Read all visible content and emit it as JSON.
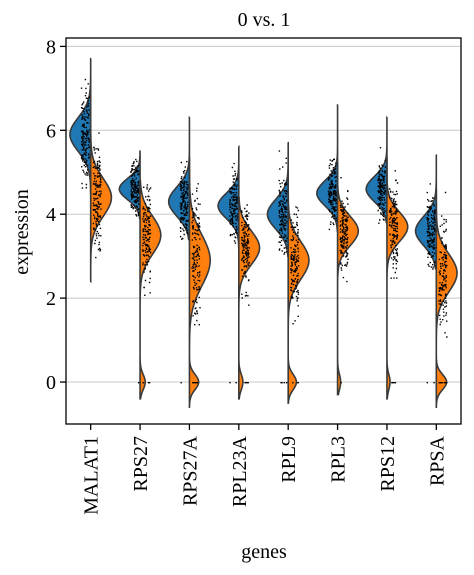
{
  "chart_data": {
    "type": "split-violin",
    "title": "0 vs. 1",
    "xlabel": "genes",
    "ylabel": "expression",
    "ylim": [
      -1,
      8.2
    ],
    "yticks": [
      0,
      2,
      4,
      6,
      8
    ],
    "grid": "horizontal",
    "categories": [
      "MALAT1",
      "RPS27",
      "RPS27A",
      "RPL23A",
      "RPL9",
      "RPL3",
      "RPS12",
      "RPSA"
    ],
    "series": [
      {
        "colors": "#1f77b4",
        "side": "left"
      },
      {
        "colors": "#ff7f0e",
        "side": "right"
      }
    ],
    "violins": [
      {
        "gene": "MALAT1",
        "left": {
          "min": 4.5,
          "max": 7.7,
          "peak": 5.9,
          "sd": 0.4,
          "zero": 0.0
        },
        "right": {
          "min": 2.4,
          "max": 6.6,
          "peak": 4.4,
          "sd": 0.45,
          "zero": 0.0
        }
      },
      {
        "gene": "RPS27",
        "left": {
          "min": 3.9,
          "max": 5.5,
          "peak": 4.6,
          "sd": 0.25,
          "zero": 0.08
        },
        "right": {
          "min": -0.4,
          "max": 4.8,
          "peak": 3.5,
          "sd": 0.45,
          "zero": 0.25
        }
      },
      {
        "gene": "RPS27A",
        "left": {
          "min": 3.4,
          "max": 6.3,
          "peak": 4.3,
          "sd": 0.35,
          "zero": 0.05
        },
        "right": {
          "min": -0.6,
          "max": 5.3,
          "peak": 2.9,
          "sd": 0.6,
          "zero": 0.45
        }
      },
      {
        "gene": "RPL23A",
        "left": {
          "min": 3.2,
          "max": 5.6,
          "peak": 4.2,
          "sd": 0.3,
          "zero": 0.05
        },
        "right": {
          "min": -0.4,
          "max": 4.4,
          "peak": 3.2,
          "sd": 0.4,
          "zero": 0.2
        }
      },
      {
        "gene": "RPL9",
        "left": {
          "min": 3.0,
          "max": 5.7,
          "peak": 4.0,
          "sd": 0.35,
          "zero": 0.2
        },
        "right": {
          "min": -0.5,
          "max": 4.6,
          "peak": 2.9,
          "sd": 0.45,
          "zero": 0.4
        }
      },
      {
        "gene": "RPL3",
        "left": {
          "min": 3.6,
          "max": 6.6,
          "peak": 4.5,
          "sd": 0.3,
          "zero": 0.05
        },
        "right": {
          "min": -0.3,
          "max": 5.2,
          "peak": 3.6,
          "sd": 0.35,
          "zero": 0.15
        }
      },
      {
        "gene": "RPS12",
        "left": {
          "min": 3.8,
          "max": 6.3,
          "peak": 4.6,
          "sd": 0.3,
          "zero": 0.05
        },
        "right": {
          "min": -0.4,
          "max": 5.3,
          "peak": 3.7,
          "sd": 0.35,
          "zero": 0.15
        }
      },
      {
        "gene": "RPSA",
        "left": {
          "min": 2.7,
          "max": 5.4,
          "peak": 3.6,
          "sd": 0.35,
          "zero": 0.1
        },
        "right": {
          "min": -0.6,
          "max": 4.6,
          "peak": 2.6,
          "sd": 0.45,
          "zero": 0.5
        }
      }
    ]
  }
}
